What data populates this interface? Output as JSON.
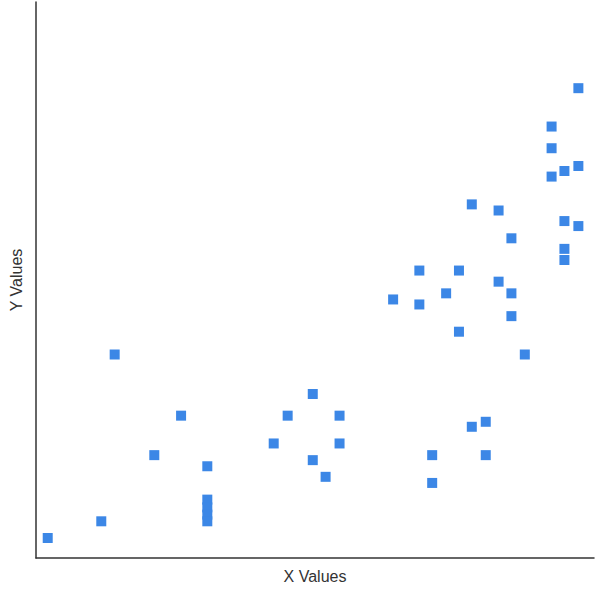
{
  "chart_data": {
    "type": "scatter",
    "x_label": "X Values",
    "y_label": "Y Values",
    "x": [
      0.21,
      1.17,
      1.41,
      2.12,
      2.6,
      3.07,
      3.07,
      3.07,
      3.07,
      3.07,
      4.26,
      4.51,
      4.96,
      4.96,
      5.19,
      5.44,
      5.44,
      6.4,
      6.87,
      6.87,
      7.1,
      7.1,
      7.35,
      7.58,
      7.58,
      7.81,
      7.81,
      8.06,
      8.06,
      8.29,
      8.29,
      8.52,
      8.52,
      8.52,
      8.76,
      9.24,
      9.24,
      9.24,
      9.47,
      9.47,
      9.47,
      9.47,
      9.72,
      9.72,
      9.72
    ],
    "values": [
      0.36,
      0.66,
      3.66,
      1.85,
      2.56,
      1.65,
      1.05,
      0.91,
      0.78,
      0.66,
      2.06,
      2.56,
      2.95,
      1.76,
      1.46,
      2.56,
      2.06,
      4.65,
      5.17,
      4.56,
      1.85,
      1.35,
      4.76,
      5.17,
      4.07,
      6.36,
      2.36,
      2.45,
      1.85,
      6.25,
      4.97,
      5.75,
      4.76,
      4.35,
      3.66,
      7.76,
      7.37,
      6.86,
      6.96,
      6.06,
      5.56,
      5.36,
      8.45,
      7.05,
      5.97
    ],
    "color": "#3c87e6",
    "marker": "square",
    "xlim": [
      0,
      10
    ],
    "ylim": [
      0,
      10
    ],
    "grid": false,
    "tick_labels": false
  }
}
